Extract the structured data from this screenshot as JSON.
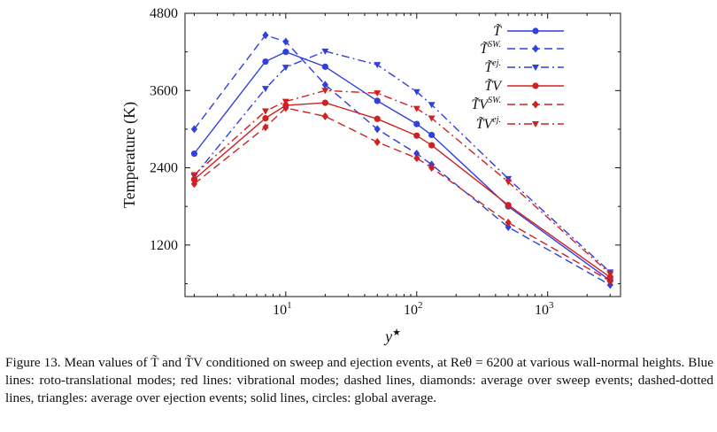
{
  "chart_data": {
    "type": "line",
    "xscale": "log",
    "xlim": [
      1.7,
      3600
    ],
    "ylim": [
      400,
      4800
    ],
    "xlabel": "y",
    "xlabel_sup": "★",
    "ylabel": "Temperature (K)",
    "yticks": [
      1200,
      2400,
      3600,
      4800
    ],
    "xticks": [
      {
        "value": 10,
        "base": "10",
        "exp": "1"
      },
      {
        "value": 100,
        "base": "10",
        "exp": "2"
      },
      {
        "value": 1000,
        "base": "10",
        "exp": "3"
      }
    ],
    "legend_position": "top-right",
    "series": [
      {
        "name": "T̃",
        "sup": "",
        "color": "#2f3fe0",
        "dash": "solid",
        "marker": "circle",
        "x": [
          2,
          7,
          10,
          20,
          50,
          100,
          130,
          500,
          3000
        ],
        "y": [
          2620,
          4050,
          4200,
          3970,
          3440,
          3080,
          2910,
          1800,
          650
        ]
      },
      {
        "name": "T̃",
        "sup": "SW.",
        "color": "#2f3fe0",
        "dash": "dashed",
        "marker": "diamond",
        "x": [
          2,
          7,
          10,
          20,
          50,
          100,
          130,
          500,
          3000
        ],
        "y": [
          3000,
          4460,
          4360,
          3690,
          3000,
          2620,
          2450,
          1480,
          580
        ]
      },
      {
        "name": "T̃",
        "sup": "ej.",
        "color": "#2f3fe0",
        "dash": "dashdot",
        "marker": "triangle",
        "x": [
          2,
          7,
          10,
          20,
          50,
          100,
          130,
          500,
          3000
        ],
        "y": [
          2270,
          3630,
          3960,
          4210,
          4000,
          3580,
          3380,
          2230,
          780
        ]
      },
      {
        "name": "T̃V",
        "sup": "",
        "color": "#d02020",
        "dash": "solid",
        "marker": "circle",
        "x": [
          2,
          7,
          10,
          20,
          50,
          100,
          130,
          500,
          3000
        ],
        "y": [
          2220,
          3170,
          3370,
          3410,
          3160,
          2900,
          2750,
          1820,
          700
        ]
      },
      {
        "name": "T̃V",
        "sup": "SW.",
        "color": "#d02020",
        "dash": "dashed",
        "marker": "diamond",
        "x": [
          2,
          7,
          10,
          20,
          50,
          100,
          130,
          500,
          3000
        ],
        "y": [
          2150,
          3030,
          3330,
          3200,
          2800,
          2550,
          2400,
          1550,
          640
        ]
      },
      {
        "name": "T̃V",
        "sup": "ej.",
        "color": "#d02020",
        "dash": "dashdot",
        "marker": "triangle",
        "x": [
          2,
          7,
          10,
          20,
          50,
          100,
          130,
          500,
          3000
        ],
        "y": [
          2290,
          3280,
          3430,
          3600,
          3560,
          3320,
          3170,
          2180,
          750
        ]
      }
    ]
  },
  "caption": {
    "lines": [
      "Figure 13. Mean values of T̃ and T̃V conditioned on sweep and ejection events, at Reθ = 6200 at various",
      "wall-normal heights. Blue lines: roto-translational modes; red lines: vibrational modes; dashed lines, diamonds:",
      "average over sweep events; dashed-dotted lines, triangles: average over ejection events; solid lines, circles:",
      "global average."
    ]
  }
}
